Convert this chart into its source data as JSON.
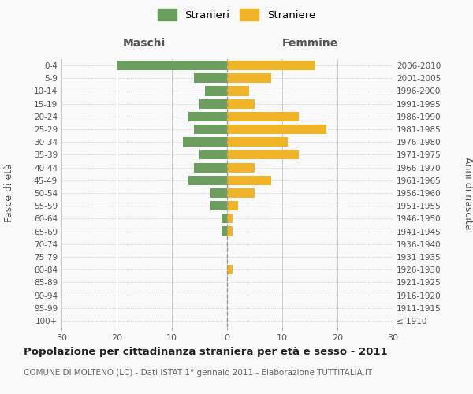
{
  "age_groups": [
    "100+",
    "95-99",
    "90-94",
    "85-89",
    "80-84",
    "75-79",
    "70-74",
    "65-69",
    "60-64",
    "55-59",
    "50-54",
    "45-49",
    "40-44",
    "35-39",
    "30-34",
    "25-29",
    "20-24",
    "15-19",
    "10-14",
    "5-9",
    "0-4"
  ],
  "birth_years": [
    "≤ 1910",
    "1911-1915",
    "1916-1920",
    "1921-1925",
    "1926-1930",
    "1931-1935",
    "1936-1940",
    "1941-1945",
    "1946-1950",
    "1951-1955",
    "1956-1960",
    "1961-1965",
    "1966-1970",
    "1971-1975",
    "1976-1980",
    "1981-1985",
    "1986-1990",
    "1991-1995",
    "1996-2000",
    "2001-2005",
    "2006-2010"
  ],
  "maschi": [
    0,
    0,
    0,
    0,
    0,
    0,
    0,
    1,
    1,
    3,
    3,
    7,
    6,
    5,
    8,
    6,
    7,
    5,
    4,
    6,
    20
  ],
  "femmine": [
    0,
    0,
    0,
    0,
    1,
    0,
    0,
    1,
    1,
    2,
    5,
    8,
    5,
    13,
    11,
    18,
    13,
    5,
    4,
    8,
    16
  ],
  "color_maschi": "#6b9e5e",
  "color_femmine": "#f0b429",
  "title": "Popolazione per cittadinanza straniera per età e sesso - 2011",
  "subtitle": "COMUNE DI MOLTENO (LC) - Dati ISTAT 1° gennaio 2011 - Elaborazione TUTTITALIA.IT",
  "ylabel_left": "Fasce di età",
  "ylabel_right": "Anni di nascita",
  "xlabel_maschi": "Maschi",
  "xlabel_femmine": "Femmine",
  "legend_maschi": "Stranieri",
  "legend_femmine": "Straniere",
  "xlim": 30,
  "background_color": "#f9f9f9",
  "grid_color": "#cccccc"
}
